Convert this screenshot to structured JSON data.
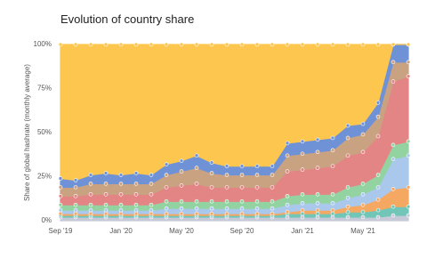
{
  "chart_data": {
    "type": "stacked_area",
    "title": "Evolution of country share",
    "y_label": "Share of global hashrate (monthly average)",
    "categories": [
      "Sep '19",
      null,
      null,
      null,
      "Jan '20",
      null,
      null,
      null,
      "May '20",
      null,
      null,
      null,
      "Sep '20",
      null,
      null,
      null,
      "Jan '21",
      null,
      null,
      null,
      "May '21",
      null,
      null,
      null
    ],
    "ylim": [
      0,
      100
    ],
    "yticks": [
      {
        "value": 0,
        "label": "0%"
      },
      {
        "value": 25,
        "label": "25%"
      },
      {
        "value": 50,
        "label": "50%"
      },
      {
        "value": 75,
        "label": "75%"
      },
      {
        "value": 100,
        "label": "100%"
      }
    ],
    "grid": true,
    "series": [
      {
        "color": "#c6c9d8",
        "values": [
          2,
          2,
          2,
          2,
          2,
          2,
          2,
          2,
          2,
          2,
          2,
          2,
          2,
          2,
          2,
          2,
          2,
          2,
          2,
          2,
          2,
          2,
          3,
          3
        ]
      },
      {
        "color": "#72c6b8",
        "values": [
          1,
          1,
          1,
          1,
          1,
          1,
          1,
          1,
          1,
          1,
          1,
          1,
          1,
          1,
          1,
          2,
          2,
          2,
          2,
          3,
          3,
          4,
          5,
          5
        ]
      },
      {
        "color": "#f4a862",
        "values": [
          1,
          1,
          1,
          1,
          1,
          1,
          1,
          1,
          1,
          1,
          1,
          1,
          1,
          1,
          1,
          1,
          2,
          2,
          2,
          3,
          4,
          6,
          10,
          11
        ]
      },
      {
        "color": "#a9c8ec",
        "values": [
          2,
          2,
          2,
          2,
          2,
          2,
          2,
          3,
          3,
          3,
          3,
          3,
          3,
          3,
          3,
          4,
          4,
          4,
          4,
          5,
          6,
          7,
          17,
          18
        ]
      },
      {
        "color": "#93d3a2",
        "values": [
          3,
          3,
          3,
          3,
          3,
          3,
          3,
          4,
          4,
          4,
          4,
          4,
          4,
          4,
          4,
          5,
          5,
          5,
          5,
          6,
          6,
          7,
          8,
          8
        ]
      },
      {
        "color": "#e48585",
        "values": [
          5,
          5,
          6,
          6,
          6,
          6,
          6,
          8,
          9,
          10,
          8,
          8,
          8,
          8,
          8,
          14,
          14,
          15,
          16,
          18,
          18,
          22,
          36,
          37
        ]
      },
      {
        "color": "#c9a282",
        "values": [
          5,
          5,
          6,
          6,
          6,
          6,
          6,
          7,
          8,
          9,
          8,
          7,
          7,
          7,
          7,
          9,
          9,
          9,
          9,
          10,
          10,
          11,
          11,
          8
        ]
      },
      {
        "color": "#6f92d6",
        "values": [
          5,
          4,
          5,
          6,
          5,
          6,
          5,
          6,
          6,
          7,
          6,
          5,
          5,
          5,
          5,
          7,
          7,
          7,
          7,
          7,
          6,
          8,
          10,
          10
        ]
      },
      {
        "color": "#fdc64e",
        "values": [
          76,
          77,
          74,
          73,
          74,
          73,
          74,
          68,
          66,
          63,
          67,
          69,
          69,
          69,
          69,
          56,
          55,
          54,
          53,
          46,
          45,
          33,
          0,
          0
        ]
      }
    ]
  }
}
